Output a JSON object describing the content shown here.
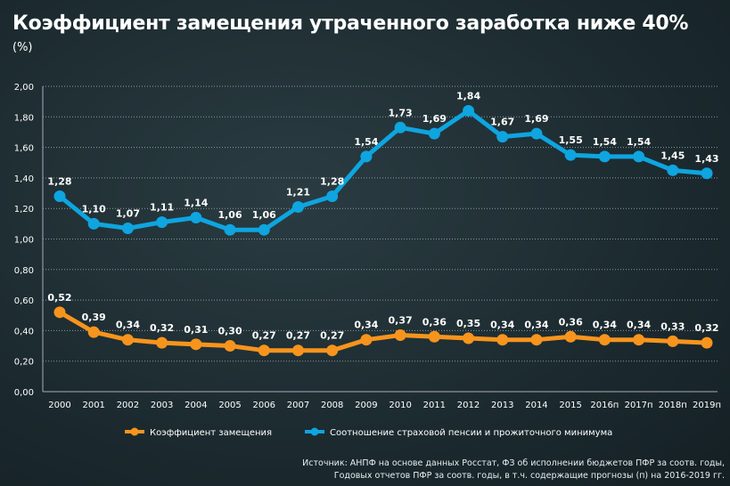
{
  "title": "Коэффициент замещения утраченного заработка ниже 40%",
  "unit": "(%)",
  "source_line1": "Источник: АНПФ на основе данных Росстат, ФЗ об исполнении бюджетов ПФР за соотв. годы,",
  "source_line2": "Годовых отчетов ПФР за соотв. годы, в т.ч. содержащие прогнозы (п) на 2016-2019 гг.",
  "chart_data": {
    "type": "line",
    "categories": [
      "2000",
      "2001",
      "2002",
      "2003",
      "2004",
      "2005",
      "2006",
      "2007",
      "2008",
      "2009",
      "2010",
      "2011",
      "2012",
      "2013",
      "2014",
      "2015",
      "2016п",
      "2017п",
      "2018п",
      "2019п"
    ],
    "ylim": [
      0,
      2
    ],
    "yticks": [
      "0,00",
      "0,20",
      "0,40",
      "0,60",
      "0,80",
      "1,00",
      "1,20",
      "1,40",
      "1,60",
      "1,80",
      "2,00"
    ],
    "grid": true,
    "legend_position": "bottom",
    "series": [
      {
        "name": "Коэффициент замещения",
        "color": "#f7941d",
        "values": [
          0.52,
          0.39,
          0.34,
          0.32,
          0.31,
          0.3,
          0.27,
          0.27,
          0.27,
          0.34,
          0.37,
          0.36,
          0.35,
          0.34,
          0.34,
          0.36,
          0.34,
          0.34,
          0.33,
          0.32
        ]
      },
      {
        "name": "Соотношение страховой пенсии и прожиточного минимума",
        "color": "#0ea5e0",
        "values": [
          1.28,
          1.1,
          1.07,
          1.11,
          1.14,
          1.06,
          1.06,
          1.21,
          1.28,
          1.54,
          1.73,
          1.69,
          1.84,
          1.67,
          1.69,
          1.55,
          1.54,
          1.54,
          1.45,
          1.43
        ]
      }
    ]
  }
}
